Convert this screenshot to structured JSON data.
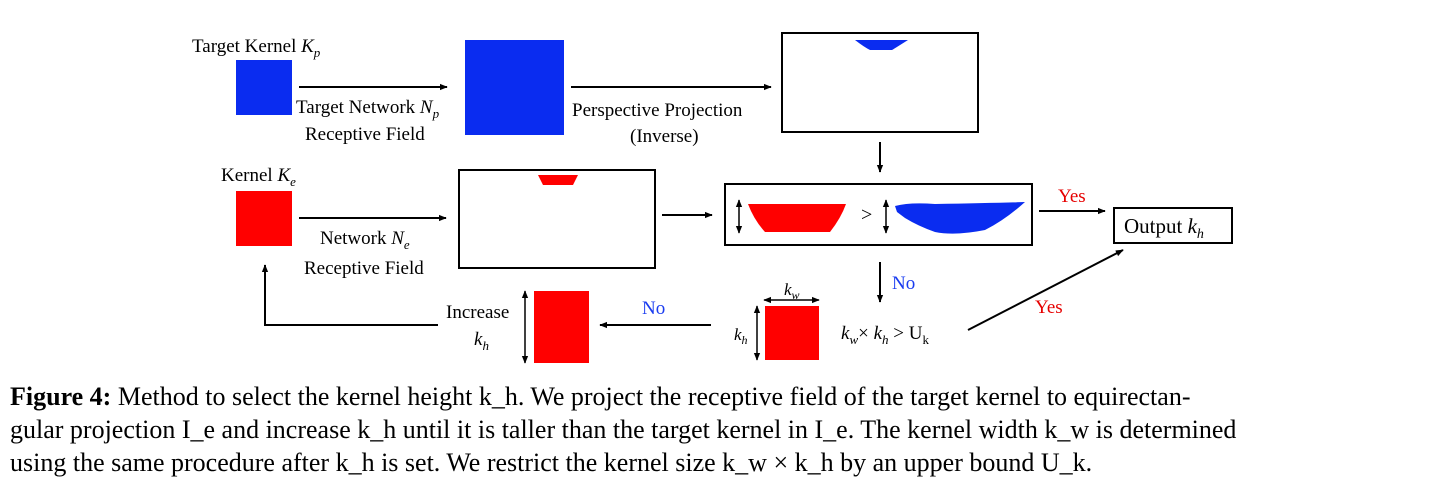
{
  "colors": {
    "blue": "#0a2cf0",
    "red": "#ff0000",
    "black": "#000000",
    "no": "#1a3cf0",
    "yes": "#e60000"
  },
  "labels": {
    "target_kernel": "Target Kernel",
    "target_network_line1": "Target Network",
    "receptive_field": "Receptive Field",
    "perspective_line1": "Perspective Projection",
    "perspective_line2": "(Inverse)",
    "kernel": "Kernel",
    "network": "Network",
    "output": "Output",
    "yes": "Yes",
    "no": "No",
    "increase": "Increase",
    "compare": ">",
    "bound_times": "×",
    "bound_gt": ">",
    "bound_U": "U",
    "bound_k": "k"
  },
  "symbols": {
    "K": "K",
    "p": "p",
    "N": "N",
    "e": "e",
    "k": "k",
    "h": "h",
    "w": "w"
  },
  "caption": {
    "label": "Figure 4:",
    "line1": "Method to select the kernel height k_h. We project the receptive field of the target kernel to equirectan-",
    "line2": "gular projection I_e and increase k_h until it is taller than the target kernel in I_e. The kernel width k_w is determined",
    "line3": "using the same procedure after k_h is set. We restrict the kernel size k_w × k_h by an upper bound U_k."
  }
}
